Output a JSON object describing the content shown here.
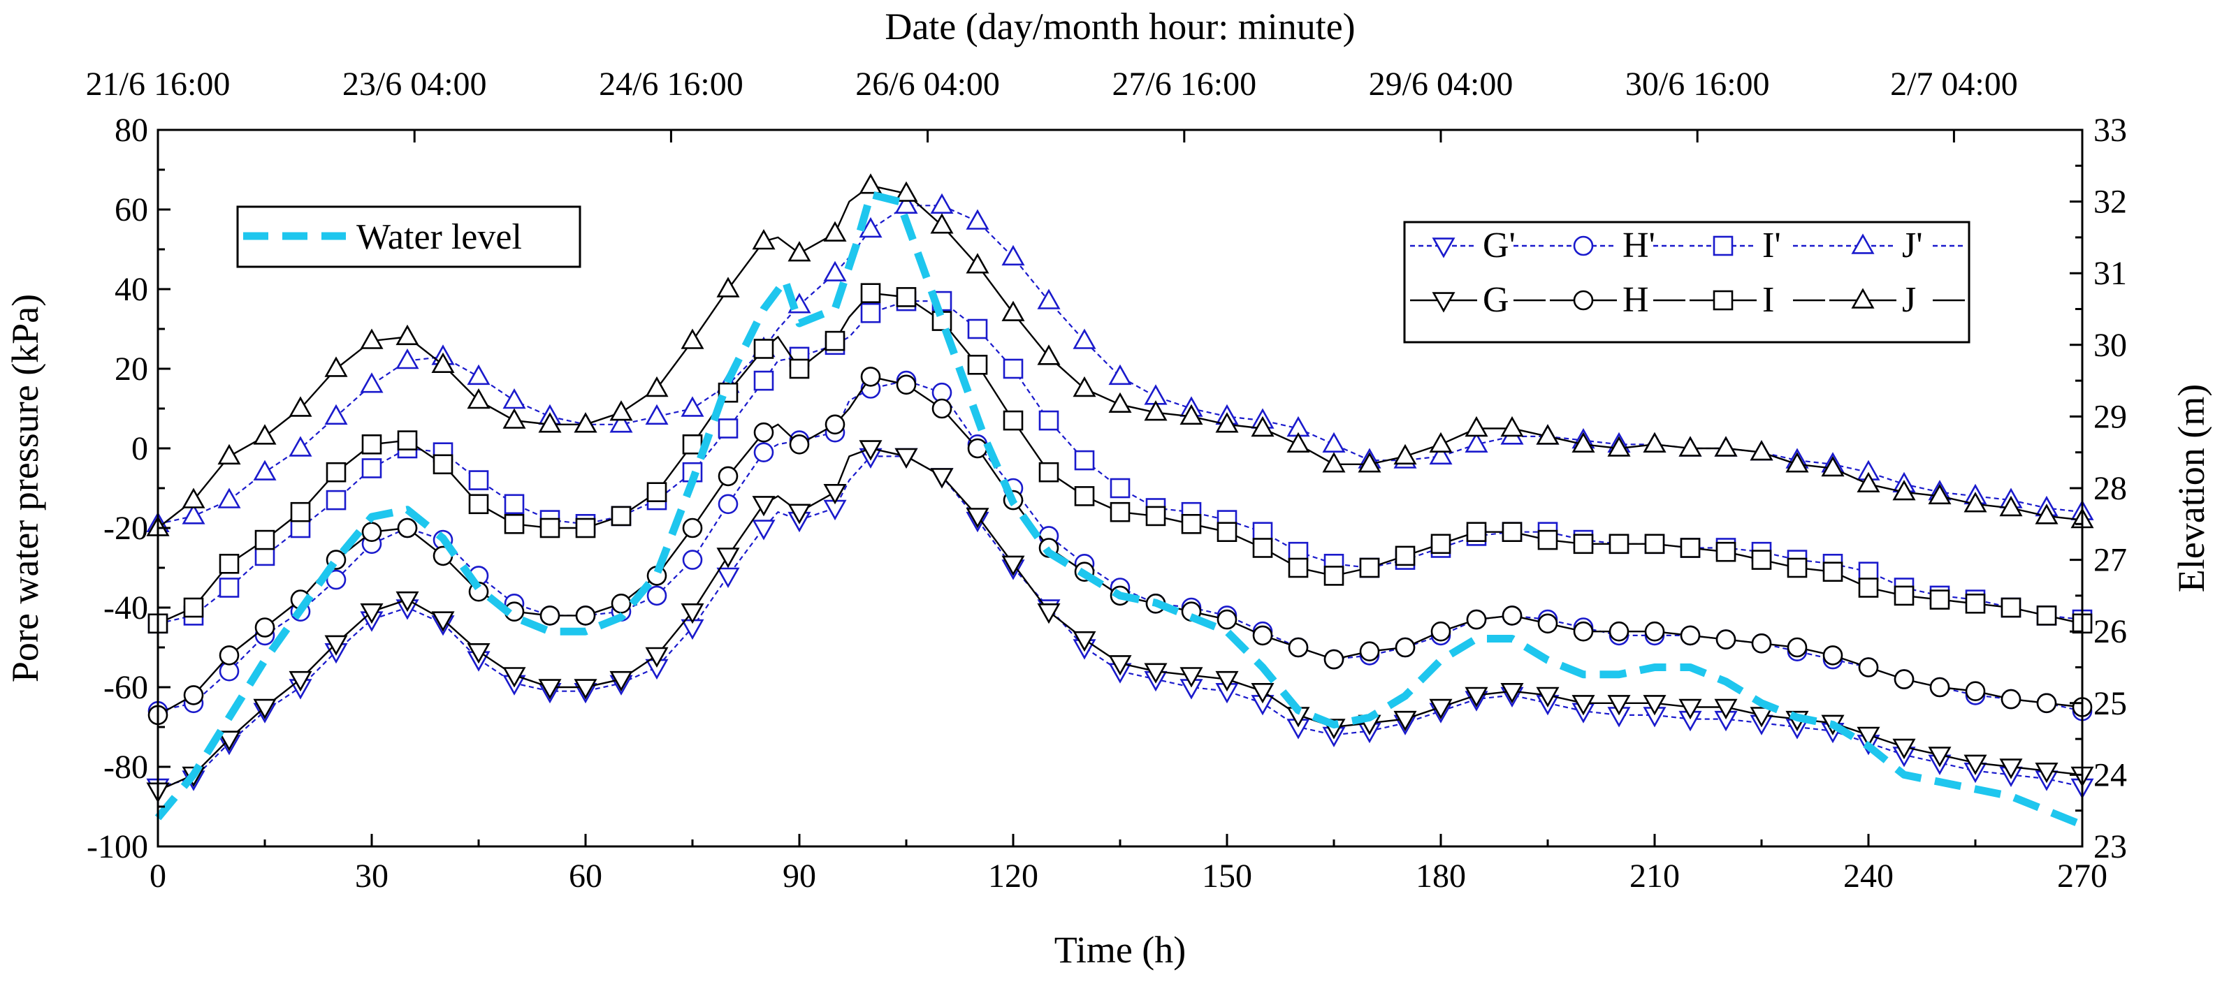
{
  "chart_data": {
    "type": "line",
    "x_title": "Time (h)",
    "y_title": "Pore water pressure (kPa)",
    "y2_title": "Elevation (m)",
    "top_title": "Date (day/month hour: minute)",
    "xlim": [
      0,
      270
    ],
    "ylim": [
      -100,
      80
    ],
    "y2lim": [
      23,
      33
    ],
    "x_ticks": [
      "0",
      "30",
      "60",
      "90",
      "120",
      "150",
      "180",
      "210",
      "240",
      "270"
    ],
    "y_ticks": [
      "-100",
      "-80",
      "-60",
      "-40",
      "-20",
      "0",
      "20",
      "40",
      "60",
      "80"
    ],
    "y2_ticks": [
      "23",
      "24",
      "25",
      "26",
      "27",
      "28",
      "29",
      "30",
      "31",
      "32",
      "33"
    ],
    "top_ticks": [
      "21/6 16:00",
      "23/6 04:00",
      "24/6 16:00",
      "26/6 04:00",
      "27/6 16:00",
      "29/6 04:00",
      "30/6 16:00",
      "2/7 04:00"
    ],
    "top_tick_hours": [
      0,
      36,
      72,
      108,
      144,
      180,
      216,
      252
    ],
    "legend_water": "Water level",
    "colors": {
      "primed": "#1a1acc",
      "unprimed": "#000000",
      "water": "#1ec6ee"
    },
    "x": [
      0,
      5,
      10,
      15,
      20,
      25,
      30,
      35,
      40,
      45,
      50,
      55,
      60,
      65,
      70,
      75,
      80,
      85,
      87,
      90,
      95,
      97,
      100,
      105,
      110,
      115,
      120,
      125,
      130,
      135,
      140,
      145,
      150,
      155,
      160,
      165,
      170,
      175,
      180,
      185,
      190,
      195,
      200,
      205,
      210,
      215,
      220,
      225,
      230,
      235,
      240,
      245,
      250,
      255,
      260,
      265,
      270
    ],
    "series": [
      {
        "name": "G'",
        "group": "primed",
        "marker": "triangle-down",
        "values": [
          -85,
          -83,
          -74,
          -66,
          -60,
          -51,
          -43,
          -40,
          -44,
          -53,
          -59,
          -61,
          -61,
          -59,
          -55,
          -45,
          -32,
          -20,
          -16,
          -18,
          -15,
          -8,
          -2,
          -2,
          -7,
          -18,
          -30,
          -40,
          -50,
          -56,
          -58,
          -60,
          -61,
          -64,
          -70,
          -72,
          -71,
          -69,
          -66,
          -63,
          -62,
          -64,
          -66,
          -67,
          -67,
          -68,
          -68,
          -69,
          -70,
          -71,
          -74,
          -77,
          -79,
          -81,
          -82,
          -83,
          -85
        ]
      },
      {
        "name": "H'",
        "group": "primed",
        "marker": "circle",
        "values": [
          -66,
          -64,
          -56,
          -47,
          -41,
          -33,
          -24,
          -20,
          -23,
          -32,
          -39,
          -42,
          -42,
          -41,
          -37,
          -28,
          -14,
          -1,
          1,
          2,
          4,
          12,
          15,
          17,
          14,
          1,
          -10,
          -22,
          -29,
          -35,
          -39,
          -40,
          -42,
          -46,
          -50,
          -53,
          -52,
          -50,
          -47,
          -43,
          -42,
          -43,
          -45,
          -47,
          -47,
          -47,
          -48,
          -49,
          -51,
          -53,
          -55,
          -58,
          -60,
          -62,
          -63,
          -64,
          -66
        ]
      },
      {
        "name": "I'",
        "group": "primed",
        "marker": "square",
        "values": [
          -44,
          -42,
          -35,
          -27,
          -20,
          -13,
          -5,
          0,
          -1,
          -8,
          -14,
          -18,
          -19,
          -17,
          -13,
          -6,
          5,
          17,
          22,
          23,
          26,
          28,
          34,
          37,
          37,
          30,
          20,
          7,
          -3,
          -10,
          -15,
          -16,
          -18,
          -21,
          -26,
          -29,
          -30,
          -28,
          -25,
          -22,
          -21,
          -21,
          -23,
          -24,
          -24,
          -25,
          -25,
          -26,
          -28,
          -29,
          -31,
          -35,
          -37,
          -38,
          -40,
          -42,
          -43
        ]
      },
      {
        "name": "J'",
        "group": "primed",
        "marker": "triangle-up",
        "values": [
          -19,
          -17,
          -13,
          -6,
          0,
          8,
          16,
          22,
          23,
          18,
          12,
          8,
          6,
          6,
          8,
          10,
          16,
          25,
          30,
          36,
          44,
          48,
          55,
          61,
          61,
          57,
          48,
          37,
          27,
          18,
          13,
          10,
          8,
          7,
          5,
          1,
          -3,
          -3,
          -2,
          1,
          3,
          3,
          2,
          1,
          1,
          0,
          0,
          -1,
          -3,
          -4,
          -6,
          -9,
          -11,
          -12,
          -13,
          -15,
          -16
        ]
      },
      {
        "name": "G",
        "group": "unprimed",
        "marker": "triangle-down",
        "values": [
          -86,
          -82,
          -73,
          -65,
          -58,
          -49,
          -41,
          -38,
          -43,
          -51,
          -57,
          -60,
          -60,
          -58,
          -52,
          -41,
          -27,
          -14,
          -12,
          -16,
          -11,
          -2,
          0,
          -2,
          -7,
          -17,
          -29,
          -41,
          -48,
          -54,
          -56,
          -57,
          -58,
          -61,
          -67,
          -70,
          -69,
          -68,
          -65,
          -62,
          -61,
          -62,
          -64,
          -64,
          -64,
          -65,
          -65,
          -67,
          -68,
          -69,
          -72,
          -75,
          -77,
          -79,
          -80,
          -81,
          -82
        ]
      },
      {
        "name": "H",
        "group": "unprimed",
        "marker": "circle",
        "values": [
          -67,
          -62,
          -52,
          -45,
          -38,
          -28,
          -21,
          -20,
          -27,
          -36,
          -41,
          -42,
          -42,
          -39,
          -32,
          -20,
          -7,
          4,
          6,
          1,
          6,
          10,
          18,
          16,
          10,
          0,
          -13,
          -25,
          -31,
          -37,
          -39,
          -41,
          -43,
          -47,
          -50,
          -53,
          -51,
          -50,
          -46,
          -43,
          -42,
          -44,
          -46,
          -46,
          -46,
          -47,
          -48,
          -49,
          -50,
          -52,
          -55,
          -58,
          -60,
          -61,
          -63,
          -64,
          -65
        ]
      },
      {
        "name": "I",
        "group": "unprimed",
        "marker": "square",
        "values": [
          -44,
          -40,
          -29,
          -23,
          -16,
          -6,
          1,
          2,
          -4,
          -14,
          -19,
          -20,
          -20,
          -17,
          -11,
          1,
          14,
          25,
          28,
          20,
          27,
          33,
          39,
          38,
          32,
          21,
          7,
          -6,
          -12,
          -16,
          -17,
          -19,
          -21,
          -25,
          -30,
          -32,
          -30,
          -27,
          -24,
          -21,
          -21,
          -23,
          -24,
          -24,
          -24,
          -25,
          -26,
          -28,
          -30,
          -31,
          -35,
          -37,
          -38,
          -39,
          -40,
          -42,
          -44
        ]
      },
      {
        "name": "J",
        "group": "unprimed",
        "marker": "triangle-up",
        "values": [
          -20,
          -13,
          -2,
          3,
          10,
          20,
          27,
          28,
          21,
          12,
          7,
          6,
          6,
          9,
          15,
          27,
          40,
          52,
          53,
          49,
          54,
          62,
          66,
          64,
          56,
          46,
          34,
          23,
          15,
          11,
          9,
          8,
          6,
          5,
          1,
          -4,
          -4,
          -2,
          1,
          5,
          5,
          3,
          1,
          0,
          1,
          0,
          0,
          -1,
          -4,
          -5,
          -9,
          -11,
          -12,
          -14,
          -15,
          -17,
          -18
        ]
      }
    ],
    "water_level": {
      "name": "Water level",
      "axis": "right",
      "x": [
        0,
        5,
        10,
        15,
        20,
        25,
        30,
        35,
        40,
        45,
        50,
        55,
        60,
        65,
        70,
        75,
        80,
        85,
        88,
        90,
        95,
        98,
        100,
        104,
        108,
        112,
        116,
        120,
        125,
        130,
        135,
        140,
        145,
        150,
        155,
        160,
        165,
        170,
        175,
        180,
        185,
        190,
        195,
        200,
        205,
        210,
        215,
        220,
        225,
        230,
        235,
        240,
        245,
        250,
        255,
        260,
        265,
        270
      ],
      "values": [
        23.4,
        24.0,
        24.8,
        25.6,
        26.3,
        27.0,
        27.6,
        27.7,
        27.3,
        26.6,
        26.2,
        26.0,
        26.0,
        26.2,
        26.8,
        28.1,
        29.5,
        30.5,
        30.9,
        30.3,
        30.5,
        31.4,
        32.1,
        32.0,
        30.9,
        29.8,
        28.7,
        27.8,
        27.1,
        26.8,
        26.5,
        26.4,
        26.2,
        26.0,
        25.5,
        24.9,
        24.7,
        24.8,
        25.1,
        25.6,
        25.9,
        25.9,
        25.6,
        25.4,
        25.4,
        25.5,
        25.5,
        25.3,
        25.0,
        24.8,
        24.7,
        24.4,
        24.0,
        23.9,
        23.8,
        23.7,
        23.5,
        23.3
      ]
    }
  }
}
